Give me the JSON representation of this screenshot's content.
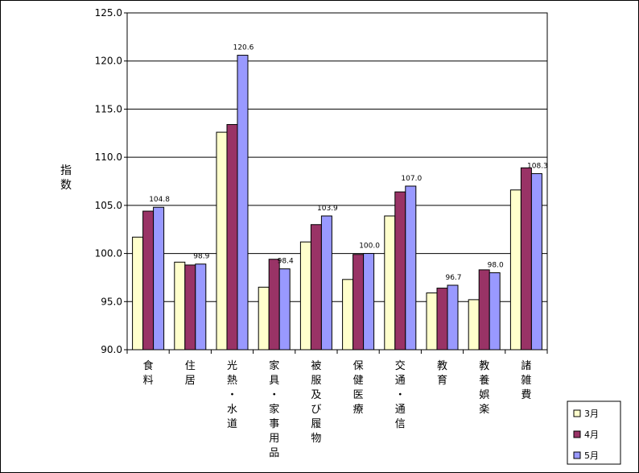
{
  "chart_data": {
    "type": "bar",
    "ylabel": "指数",
    "ylim": [
      90,
      125
    ],
    "ytick_step": 5,
    "yticks": [
      "90.0",
      "95.0",
      "100.0",
      "105.0",
      "110.0",
      "115.0",
      "120.0",
      "125.0"
    ],
    "grid": true,
    "legend_position": "bottom-right",
    "categories": [
      "食料",
      "住居",
      "光熱・水道",
      "家具・家事用品",
      "被服及び履物",
      "保健医療",
      "交通・通信",
      "教育",
      "教養娯楽",
      "諸雑費"
    ],
    "series": [
      {
        "name": "3月",
        "color": "#ffffcc",
        "values": [
          101.7,
          99.1,
          112.6,
          96.5,
          101.2,
          97.3,
          103.9,
          95.9,
          95.2,
          106.6
        ]
      },
      {
        "name": "4月",
        "color": "#993366",
        "values": [
          104.4,
          98.8,
          113.4,
          99.4,
          103.0,
          99.9,
          106.4,
          96.4,
          98.3,
          108.9
        ]
      },
      {
        "name": "5月",
        "color": "#9999ff",
        "values": [
          104.8,
          98.9,
          120.6,
          98.4,
          103.9,
          100.0,
          107.0,
          96.7,
          98.0,
          108.3
        ]
      }
    ],
    "data_labels": {
      "series_index": 2,
      "labels": [
        "104.8",
        "98.9",
        "120.6",
        "98.4",
        "103.9",
        "100.0",
        "107.0",
        "96.7",
        "98.0",
        "108.3"
      ]
    }
  }
}
